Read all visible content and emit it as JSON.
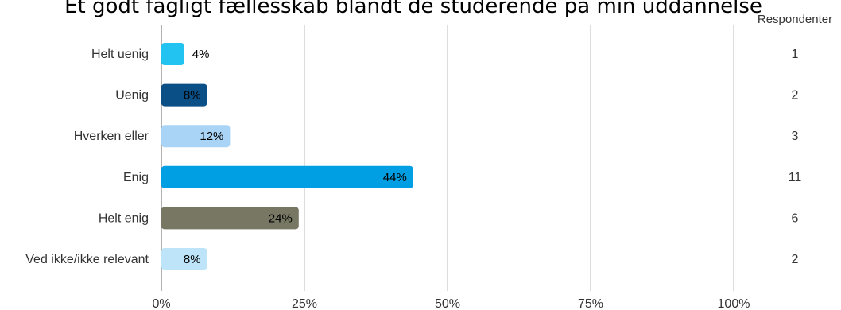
{
  "chart_data": {
    "type": "bar",
    "orientation": "horizontal",
    "title": "Et godt fagligt fællesskab blandt de studerende på min uddannelse",
    "categories": [
      "Helt uenig",
      "Uenig",
      "Hverken eller",
      "Enig",
      "Helt enig",
      "Ved ikke/ikke relevant"
    ],
    "values": [
      4,
      8,
      12,
      44,
      24,
      8
    ],
    "value_labels": [
      "4%",
      "8%",
      "12%",
      "44%",
      "24%",
      "8%"
    ],
    "colors": [
      "#22c3f0",
      "#0a4f86",
      "#aad4f5",
      "#009fe3",
      "#777764",
      "#bde4f8"
    ],
    "xlim": [
      0,
      100
    ],
    "x_ticks": [
      "0%",
      "25%",
      "50%",
      "75%",
      "100%"
    ],
    "x_tick_values": [
      0,
      25,
      50,
      75,
      100
    ],
    "grid": true,
    "respondents_header": "Respondenter",
    "respondents": [
      "1",
      "2",
      "3",
      "11",
      "6",
      "2"
    ]
  }
}
